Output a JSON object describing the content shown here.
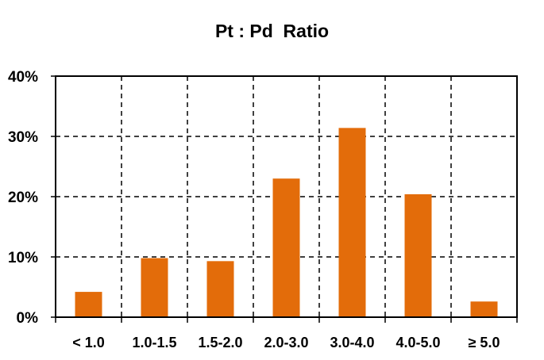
{
  "chart_data": {
    "type": "bar",
    "title": "Pt : Pd  Ratio",
    "xlabel": "",
    "ylabel": "",
    "categories": [
      "< 1.0",
      "1.0-1.5",
      "1.5-2.0",
      "2.0-3.0",
      "3.0-4.0",
      "4.0-5.0",
      "≥ 5.0"
    ],
    "values": [
      4.2,
      9.8,
      9.3,
      23.0,
      31.4,
      20.4,
      2.6
    ],
    "value_unit": "%",
    "ylim": [
      0,
      40
    ],
    "yticks": [
      0,
      10,
      20,
      30,
      40
    ],
    "ytick_labels": [
      "0%",
      "10%",
      "20%",
      "30%",
      "40%"
    ],
    "grid": true,
    "grid_style": "dashed",
    "legend": "none",
    "colors": {
      "bar": "#E36C0A",
      "grid": "#000000",
      "axis": "#000000"
    }
  }
}
